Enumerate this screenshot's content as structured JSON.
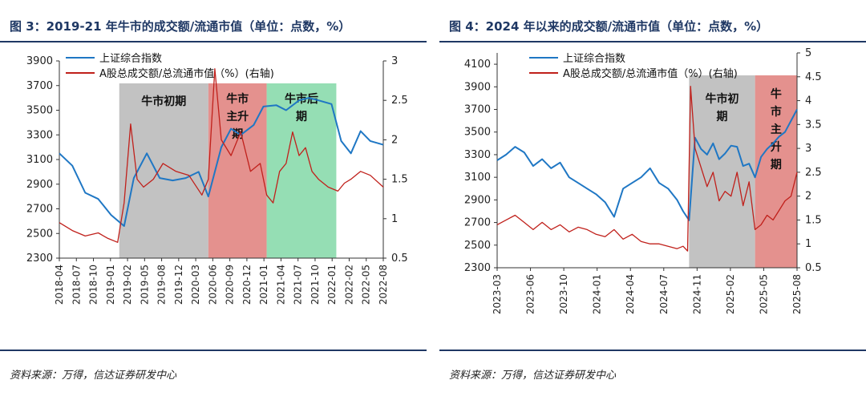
{
  "charts": [
    {
      "title": "图 3：2019-21 年牛市的成交额/流通市值（单位：点数，%）",
      "source": "资料来源：万得，信达证券研发中心",
      "chart_data": {
        "type": "line",
        "title": "图 3：2019-21 年牛市的成交额/流通市值（单位：点数，%）",
        "left_axis": {
          "range": [
            2300,
            3900
          ],
          "ticks": [
            "3900",
            "3700",
            "3500",
            "3300",
            "3100",
            "2900",
            "2700",
            "2500",
            "2300"
          ]
        },
        "right_axis": {
          "range": [
            0.5,
            3
          ],
          "ticks": [
            "3",
            "2.5",
            "2",
            "1.5",
            "1",
            "0.5"
          ]
        },
        "x_ticks": [
          "2018-04",
          "2018-07",
          "2018-10",
          "2019-01",
          "2019-02",
          "2019-05",
          "2019-08",
          "2019-12",
          "2020-03",
          "2020-06",
          "2020-09",
          "2020-12",
          "2021-01",
          "2021-04",
          "2021-07",
          "2021-10",
          "2022-01",
          "2022-02",
          "2022-05",
          "2022-08"
        ],
        "legend": [
          "上证综合指数",
          "A股总成交额/总流通市值（%）(右轴)"
        ],
        "phases": [
          {
            "label": "牛市初期",
            "start": 0.185,
            "end": 0.46,
            "color": "#bfbfbf"
          },
          {
            "label": "牛市主升期",
            "start": 0.46,
            "end": 0.64,
            "color": "#e38b88"
          },
          {
            "label": "牛市后期",
            "start": 0.64,
            "end": 0.855,
            "color": "#8fdcb0"
          }
        ],
        "series": [
          {
            "name": "上证综合指数",
            "axis": "left",
            "color": "#1f77c4",
            "x": [
              0,
              0.04,
              0.08,
              0.12,
              0.16,
              0.2,
              0.23,
              0.27,
              0.31,
              0.35,
              0.39,
              0.43,
              0.46,
              0.5,
              0.53,
              0.56,
              0.6,
              0.63,
              0.67,
              0.7,
              0.74,
              0.77,
              0.8,
              0.84,
              0.87,
              0.9,
              0.93,
              0.96,
              1
            ],
            "values": [
              3150,
              3050,
              2830,
              2780,
              2650,
              2560,
              2950,
              3150,
              2950,
              2930,
              2950,
              3000,
              2800,
              3200,
              3350,
              3300,
              3380,
              3530,
              3540,
              3500,
              3580,
              3600,
              3580,
              3550,
              3250,
              3150,
              3330,
              3250,
              3220
            ]
          },
          {
            "name": "A股总成交额/总流通市值（%）(右轴)",
            "axis": "right",
            "color": "#c0201b",
            "x": [
              0,
              0.04,
              0.08,
              0.12,
              0.15,
              0.18,
              0.2,
              0.22,
              0.24,
              0.26,
              0.29,
              0.32,
              0.36,
              0.4,
              0.44,
              0.46,
              0.48,
              0.5,
              0.53,
              0.56,
              0.59,
              0.62,
              0.64,
              0.66,
              0.68,
              0.7,
              0.72,
              0.74,
              0.76,
              0.78,
              0.8,
              0.83,
              0.86,
              0.88,
              0.9,
              0.93,
              0.96,
              1
            ],
            "values": [
              0.95,
              0.85,
              0.78,
              0.82,
              0.75,
              0.7,
              1.2,
              2.2,
              1.5,
              1.4,
              1.5,
              1.7,
              1.6,
              1.55,
              1.3,
              1.5,
              2.9,
              2.0,
              1.8,
              2.1,
              1.6,
              1.7,
              1.3,
              1.2,
              1.6,
              1.7,
              2.1,
              1.8,
              1.9,
              1.6,
              1.5,
              1.4,
              1.35,
              1.45,
              1.5,
              1.6,
              1.55,
              1.4
            ]
          }
        ]
      }
    },
    {
      "title": "图 4：2024 年以来的成交额/流通市值（单位：点数，%）",
      "source": "资料来源：万得，信达证券研发中心",
      "chart_data": {
        "type": "line",
        "title": "图 4：2024 年以来的成交额/流通市值（单位：点数，%）",
        "left_axis": {
          "range": [
            2300,
            4200
          ],
          "ticks": [
            "4100",
            "3900",
            "3700",
            "3500",
            "3300",
            "3100",
            "2900",
            "2700",
            "2500",
            "2300"
          ]
        },
        "right_axis": {
          "range": [
            0.5,
            5
          ],
          "ticks": [
            "5",
            "4.5",
            "4",
            "3.5",
            "3",
            "2.5",
            "2",
            "1.5",
            "1",
            "0.5"
          ]
        },
        "x_ticks": [
          "2023-03",
          "2023-06",
          "2023-10",
          "2024-01",
          "2024-04",
          "2024-07",
          "2024-11",
          "2025-02",
          "2025-05",
          "2025-08"
        ],
        "legend": [
          "上证综合指数",
          "A股总成交额/总流通市值（%）(右轴)"
        ],
        "phases": [
          {
            "label": "牛市初期",
            "start": 0.64,
            "end": 0.86,
            "color": "#bfbfbf"
          },
          {
            "label": "牛市主升期",
            "start": 0.86,
            "end": 1.0,
            "color": "#e38b88"
          }
        ],
        "series": [
          {
            "name": "上证综合指数",
            "axis": "left",
            "color": "#1f77c4",
            "x": [
              0,
              0.03,
              0.06,
              0.09,
              0.12,
              0.15,
              0.18,
              0.21,
              0.24,
              0.27,
              0.3,
              0.33,
              0.36,
              0.39,
              0.42,
              0.45,
              0.48,
              0.51,
              0.54,
              0.57,
              0.6,
              0.62,
              0.64,
              0.66,
              0.68,
              0.7,
              0.72,
              0.74,
              0.76,
              0.78,
              0.8,
              0.82,
              0.84,
              0.86,
              0.88,
              0.9,
              0.92,
              0.94,
              0.96,
              0.98,
              1
            ],
            "values": [
              3250,
              3300,
              3370,
              3320,
              3200,
              3260,
              3180,
              3230,
              3100,
              3050,
              3000,
              2950,
              2880,
              2750,
              3000,
              3050,
              3100,
              3180,
              3050,
              3000,
              2900,
              2800,
              2720,
              3450,
              3350,
              3300,
              3400,
              3260,
              3310,
              3380,
              3370,
              3200,
              3220,
              3100,
              3280,
              3350,
              3400,
              3460,
              3500,
              3600,
              3700
            ]
          },
          {
            "name": "A股总成交额/总流通市值（%）(右轴)",
            "axis": "right",
            "color": "#c0201b",
            "x": [
              0,
              0.03,
              0.06,
              0.09,
              0.12,
              0.15,
              0.18,
              0.21,
              0.24,
              0.27,
              0.3,
              0.33,
              0.36,
              0.39,
              0.42,
              0.45,
              0.48,
              0.51,
              0.54,
              0.57,
              0.6,
              0.62,
              0.635,
              0.645,
              0.66,
              0.68,
              0.7,
              0.72,
              0.74,
              0.76,
              0.78,
              0.8,
              0.82,
              0.84,
              0.86,
              0.88,
              0.9,
              0.92,
              0.94,
              0.96,
              0.98,
              1
            ],
            "values": [
              1.4,
              1.5,
              1.6,
              1.45,
              1.3,
              1.45,
              1.3,
              1.4,
              1.25,
              1.35,
              1.3,
              1.2,
              1.15,
              1.3,
              1.1,
              1.2,
              1.05,
              1.0,
              1.0,
              0.95,
              0.9,
              0.95,
              0.85,
              4.3,
              3.0,
              2.6,
              2.2,
              2.5,
              1.9,
              2.1,
              2.0,
              2.5,
              1.8,
              2.3,
              1.3,
              1.4,
              1.6,
              1.5,
              1.7,
              1.9,
              2.0,
              2.5
            ]
          }
        ]
      }
    }
  ]
}
